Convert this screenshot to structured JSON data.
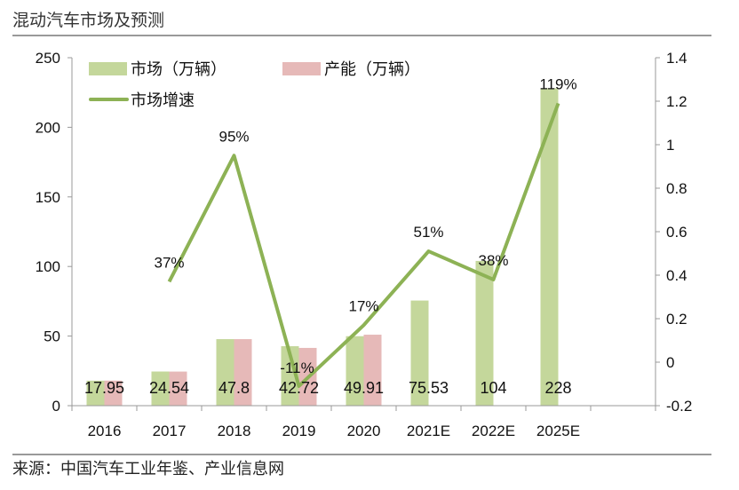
{
  "title": "混动汽车市场及预测",
  "source": "来源：中国汽车工业年鉴、产业信息网",
  "chart_data": {
    "type": "bar+line",
    "categories": [
      "2016",
      "2017",
      "2018",
      "2019",
      "2020",
      "2021E",
      "2022E",
      "2025E",
      ""
    ],
    "series": [
      {
        "name": "市场（万辆）",
        "kind": "bar",
        "axis": "left",
        "color": "#c4d79b",
        "values": [
          17.95,
          24.54,
          47.8,
          42.72,
          49.91,
          75.53,
          104,
          228,
          null
        ],
        "labels": [
          "17.95",
          "24.54",
          "47.8",
          "42.72",
          "49.91",
          "75.53",
          "104",
          "228",
          ""
        ]
      },
      {
        "name": "产能（万辆）",
        "kind": "bar",
        "axis": "left",
        "color": "#e6b9b8",
        "values": [
          18,
          24.5,
          47.8,
          41.5,
          51,
          null,
          null,
          null,
          null
        ]
      },
      {
        "name": "市场增速",
        "kind": "line",
        "axis": "right",
        "color": "#8db255",
        "values": [
          null,
          0.37,
          0.95,
          -0.11,
          0.17,
          0.51,
          0.38,
          1.19,
          null
        ],
        "labels": [
          "",
          "37%",
          "95%",
          "-11%",
          "17%",
          "51%",
          "38%",
          "119%",
          ""
        ]
      }
    ],
    "y_left": {
      "lim": [
        0,
        250
      ],
      "ticks": [
        "0",
        "50",
        "100",
        "150",
        "200",
        "250"
      ]
    },
    "y_right": {
      "lim": [
        -0.2,
        1.4
      ],
      "ticks": [
        "-0.2",
        "0",
        "0.2",
        "0.4",
        "0.6",
        "0.8",
        "1",
        "1.2",
        "1.4"
      ]
    },
    "legend": "top-left",
    "grid": false
  }
}
